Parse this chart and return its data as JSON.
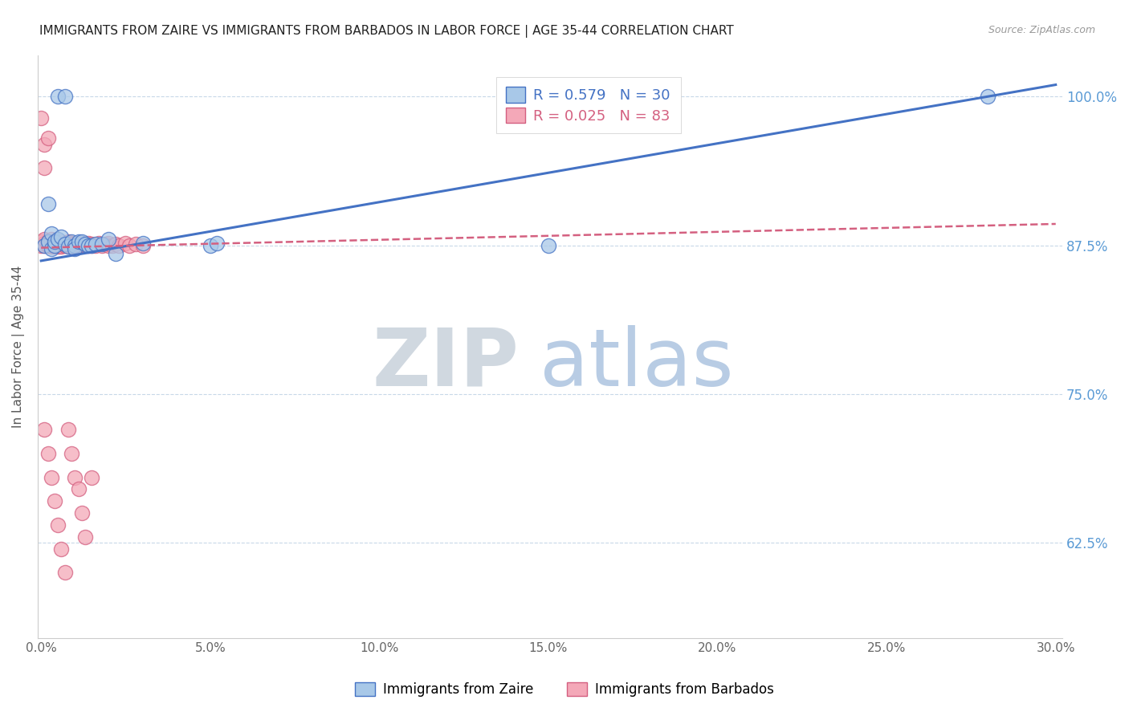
{
  "title": "IMMIGRANTS FROM ZAIRE VS IMMIGRANTS FROM BARBADOS IN LABOR FORCE | AGE 35-44 CORRELATION CHART",
  "source": "Source: ZipAtlas.com",
  "ylabel": "In Labor Force | Age 35-44",
  "xlim_min": -0.001,
  "xlim_max": 0.302,
  "ylim_min": 0.545,
  "ylim_max": 1.035,
  "yticks": [
    0.625,
    0.75,
    0.875,
    1.0
  ],
  "ytick_labels": [
    "62.5%",
    "75.0%",
    "87.5%",
    "100.0%"
  ],
  "xticks": [
    0.0,
    0.05,
    0.1,
    0.15,
    0.2,
    0.25,
    0.3
  ],
  "xtick_labels": [
    "0.0%",
    "5.0%",
    "10.0%",
    "15.0%",
    "20.0%",
    "25.0%",
    "30.0%"
  ],
  "zaire_fill": "#A8C8E8",
  "zaire_edge": "#4472C4",
  "barbados_fill": "#F4A8B8",
  "barbados_edge": "#D46080",
  "zaire_line_color": "#4472C4",
  "barbados_line_color": "#D46080",
  "grid_color": "#C8D8E8",
  "axis_color": "#CCCCCC",
  "tick_color": "#666666",
  "right_tick_color": "#5B9BD5",
  "legend_label_zaire": "Immigrants from Zaire",
  "legend_label_barbados": "Immigrants from Barbados",
  "watermark_zip": "ZIP",
  "watermark_atlas": "atlas",
  "watermark_zip_color": "#D0D8E0",
  "watermark_atlas_color": "#B8CCE4",
  "zaire_trend_x0": 0.0,
  "zaire_trend_x1": 0.3,
  "zaire_trend_y0": 0.862,
  "zaire_trend_y1": 1.01,
  "barbados_trend_x0": 0.0,
  "barbados_trend_x1": 0.3,
  "barbados_trend_y0": 0.873,
  "barbados_trend_y1": 0.893,
  "zaire_scatter_x": [
    0.001,
    0.002,
    0.002,
    0.003,
    0.003,
    0.004,
    0.004,
    0.005,
    0.005,
    0.006,
    0.007,
    0.007,
    0.008,
    0.009,
    0.01,
    0.01,
    0.011,
    0.012,
    0.013,
    0.014,
    0.015,
    0.016,
    0.018,
    0.02,
    0.022,
    0.03,
    0.05,
    0.052,
    0.15,
    0.28
  ],
  "zaire_scatter_y": [
    0.875,
    0.91,
    0.878,
    0.885,
    0.872,
    0.875,
    0.878,
    1.0,
    0.88,
    0.882,
    1.0,
    0.876,
    0.874,
    0.878,
    0.875,
    0.872,
    0.878,
    0.878,
    0.876,
    0.875,
    0.875,
    0.876,
    0.876,
    0.88,
    0.868,
    0.877,
    0.875,
    0.877,
    0.875,
    1.0
  ],
  "barbados_scatter_x": [
    0.0,
    0.0,
    0.0,
    0.001,
    0.001,
    0.001,
    0.001,
    0.001,
    0.002,
    0.002,
    0.002,
    0.002,
    0.002,
    0.003,
    0.003,
    0.003,
    0.003,
    0.003,
    0.004,
    0.004,
    0.004,
    0.004,
    0.005,
    0.005,
    0.005,
    0.005,
    0.005,
    0.006,
    0.006,
    0.006,
    0.006,
    0.007,
    0.007,
    0.007,
    0.007,
    0.008,
    0.008,
    0.008,
    0.009,
    0.009,
    0.009,
    0.01,
    0.01,
    0.01,
    0.01,
    0.011,
    0.011,
    0.011,
    0.012,
    0.012,
    0.013,
    0.013,
    0.014,
    0.014,
    0.015,
    0.015,
    0.016,
    0.017,
    0.018,
    0.019,
    0.02,
    0.02,
    0.021,
    0.022,
    0.023,
    0.025,
    0.026,
    0.028,
    0.03,
    0.001,
    0.002,
    0.003,
    0.004,
    0.005,
    0.006,
    0.007,
    0.008,
    0.009,
    0.01,
    0.011,
    0.012,
    0.013,
    0.015
  ],
  "barbados_scatter_y": [
    0.875,
    0.878,
    0.982,
    0.96,
    0.94,
    0.877,
    0.875,
    0.88,
    0.875,
    0.965,
    0.878,
    0.876,
    0.875,
    0.878,
    0.875,
    0.876,
    0.88,
    0.874,
    0.875,
    0.878,
    0.876,
    0.874,
    0.875,
    0.877,
    0.875,
    0.876,
    0.874,
    0.875,
    0.878,
    0.876,
    0.874,
    0.875,
    0.877,
    0.875,
    0.876,
    0.875,
    0.878,
    0.876,
    0.875,
    0.877,
    0.874,
    0.875,
    0.877,
    0.876,
    0.875,
    0.875,
    0.877,
    0.876,
    0.875,
    0.877,
    0.876,
    0.875,
    0.875,
    0.877,
    0.876,
    0.875,
    0.875,
    0.877,
    0.875,
    0.876,
    0.875,
    0.877,
    0.875,
    0.876,
    0.875,
    0.877,
    0.875,
    0.876,
    0.875,
    0.72,
    0.7,
    0.68,
    0.66,
    0.64,
    0.62,
    0.6,
    0.72,
    0.7,
    0.68,
    0.67,
    0.65,
    0.63,
    0.68
  ]
}
